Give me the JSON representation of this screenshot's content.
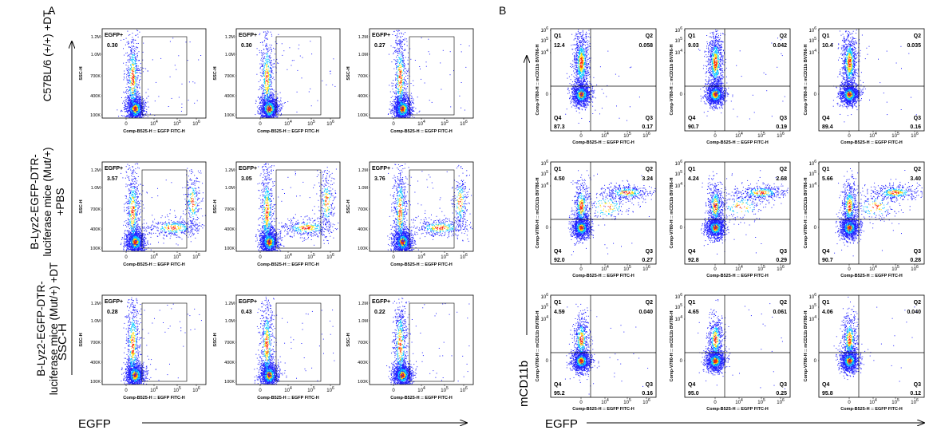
{
  "panel_labels": {
    "a": "A",
    "b": "B"
  },
  "row_labels": [
    "C57BL/6 (+/+) +DT",
    "B-Lyz2-EGFP-DTR-luciferase mice (Mut/+) +PBS",
    "B-Lyz2-EGFP-DTR-luciferase mice (Mut/+) +DT"
  ],
  "big_axes": {
    "a_y": "SSC-H",
    "a_x": "EGFP",
    "b_y": "mCD11b",
    "b_x": "EGFP"
  },
  "colors": {
    "low": "#2020ff",
    "mid": "#00c8ff",
    "high": "#ffe000",
    "peak": "#ff2000",
    "gate": "#000000"
  },
  "chart_data": [
    {
      "type": "scatter",
      "panel": "A",
      "kind": "gated-density-plot",
      "x_axis_label": "Comp-B525-H :: EGFP FITC-H",
      "y_axis_label": "SSC-H",
      "x_ticks": [
        "0",
        "10^4",
        "10^5",
        "10^6"
      ],
      "y_ticks": [
        "100K",
        "400K",
        "700K",
        "1.0M",
        "1.2M"
      ],
      "gate_label": "EGFP+",
      "plots": [
        {
          "row": 0,
          "col": 0,
          "gate_percent": "0.30",
          "egfp_cluster": false
        },
        {
          "row": 0,
          "col": 1,
          "gate_percent": "0.30",
          "egfp_cluster": false
        },
        {
          "row": 0,
          "col": 2,
          "gate_percent": "0.27",
          "egfp_cluster": false
        },
        {
          "row": 1,
          "col": 0,
          "gate_percent": "3.57",
          "egfp_cluster": true
        },
        {
          "row": 1,
          "col": 1,
          "gate_percent": "3.05",
          "egfp_cluster": true
        },
        {
          "row": 1,
          "col": 2,
          "gate_percent": "3.76",
          "egfp_cluster": true
        },
        {
          "row": 2,
          "col": 0,
          "gate_percent": "0.28",
          "egfp_cluster": false
        },
        {
          "row": 2,
          "col": 1,
          "gate_percent": "0.43",
          "egfp_cluster": false
        },
        {
          "row": 2,
          "col": 2,
          "gate_percent": "0.22",
          "egfp_cluster": false
        }
      ]
    },
    {
      "type": "scatter",
      "panel": "B",
      "kind": "quadrant-density-plot",
      "x_axis_label": "Comp-B525-H :: EGFP FITC-H",
      "y_axis_label": "Comp-V780-H :: mCD11b BV786-H",
      "x_ticks": [
        "0",
        "10^4",
        "10^5",
        "10^6"
      ],
      "y_ticks": [
        "0",
        "10^4",
        "10^5",
        "10^6"
      ],
      "quadrant_names": [
        "Q1",
        "Q2",
        "Q3",
        "Q4"
      ],
      "plots": [
        {
          "row": 0,
          "col": 0,
          "Q1": "12.4",
          "Q2": "0.058",
          "Q3": "0.17",
          "Q4": "87.3",
          "q2_cluster": false
        },
        {
          "row": 0,
          "col": 1,
          "Q1": "9.03",
          "Q2": "0.042",
          "Q3": "0.19",
          "Q4": "90.7",
          "q2_cluster": false
        },
        {
          "row": 0,
          "col": 2,
          "Q1": "10.4",
          "Q2": "0.035",
          "Q3": "0.16",
          "Q4": "89.4",
          "q2_cluster": false
        },
        {
          "row": 1,
          "col": 0,
          "Q1": "4.50",
          "Q2": "3.24",
          "Q3": "0.27",
          "Q4": "92.0",
          "q2_cluster": true
        },
        {
          "row": 1,
          "col": 1,
          "Q1": "4.24",
          "Q2": "2.68",
          "Q3": "0.29",
          "Q4": "92.8",
          "q2_cluster": true
        },
        {
          "row": 1,
          "col": 2,
          "Q1": "5.66",
          "Q2": "3.40",
          "Q3": "0.28",
          "Q4": "90.7",
          "q2_cluster": true
        },
        {
          "row": 2,
          "col": 0,
          "Q1": "4.59",
          "Q2": "0.040",
          "Q3": "0.16",
          "Q4": "95.2",
          "q2_cluster": false
        },
        {
          "row": 2,
          "col": 1,
          "Q1": "4.65",
          "Q2": "0.061",
          "Q3": "0.25",
          "Q4": "95.0",
          "q2_cluster": false
        },
        {
          "row": 2,
          "col": 2,
          "Q1": "4.06",
          "Q2": "0.040",
          "Q3": "0.12",
          "Q4": "95.8",
          "q2_cluster": false
        }
      ]
    }
  ]
}
